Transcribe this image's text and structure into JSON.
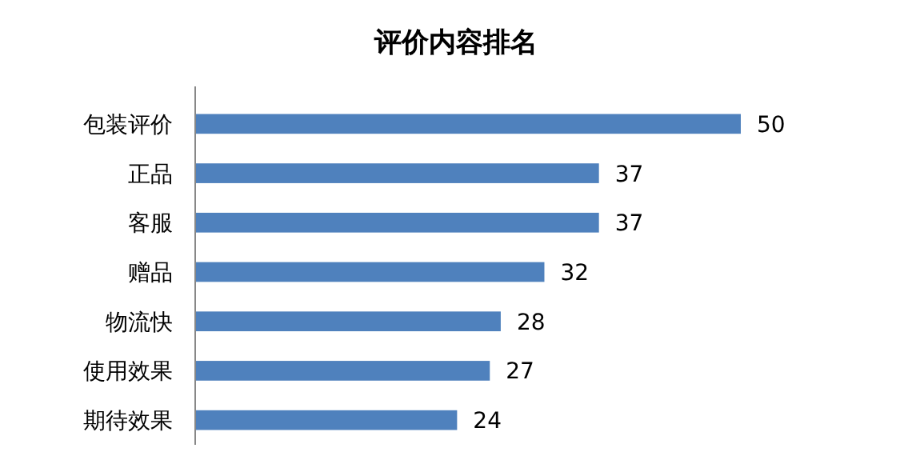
{
  "chart_data": {
    "type": "bar",
    "orientation": "horizontal",
    "title": "评价内容排名",
    "categories": [
      "包装评价",
      "正品",
      "客服",
      "赠品",
      "物流快",
      "使用效果",
      "期待效果"
    ],
    "values": [
      50,
      37,
      37,
      32,
      28,
      27,
      24
    ],
    "color": "#4f81bd",
    "data_labels": true
  }
}
